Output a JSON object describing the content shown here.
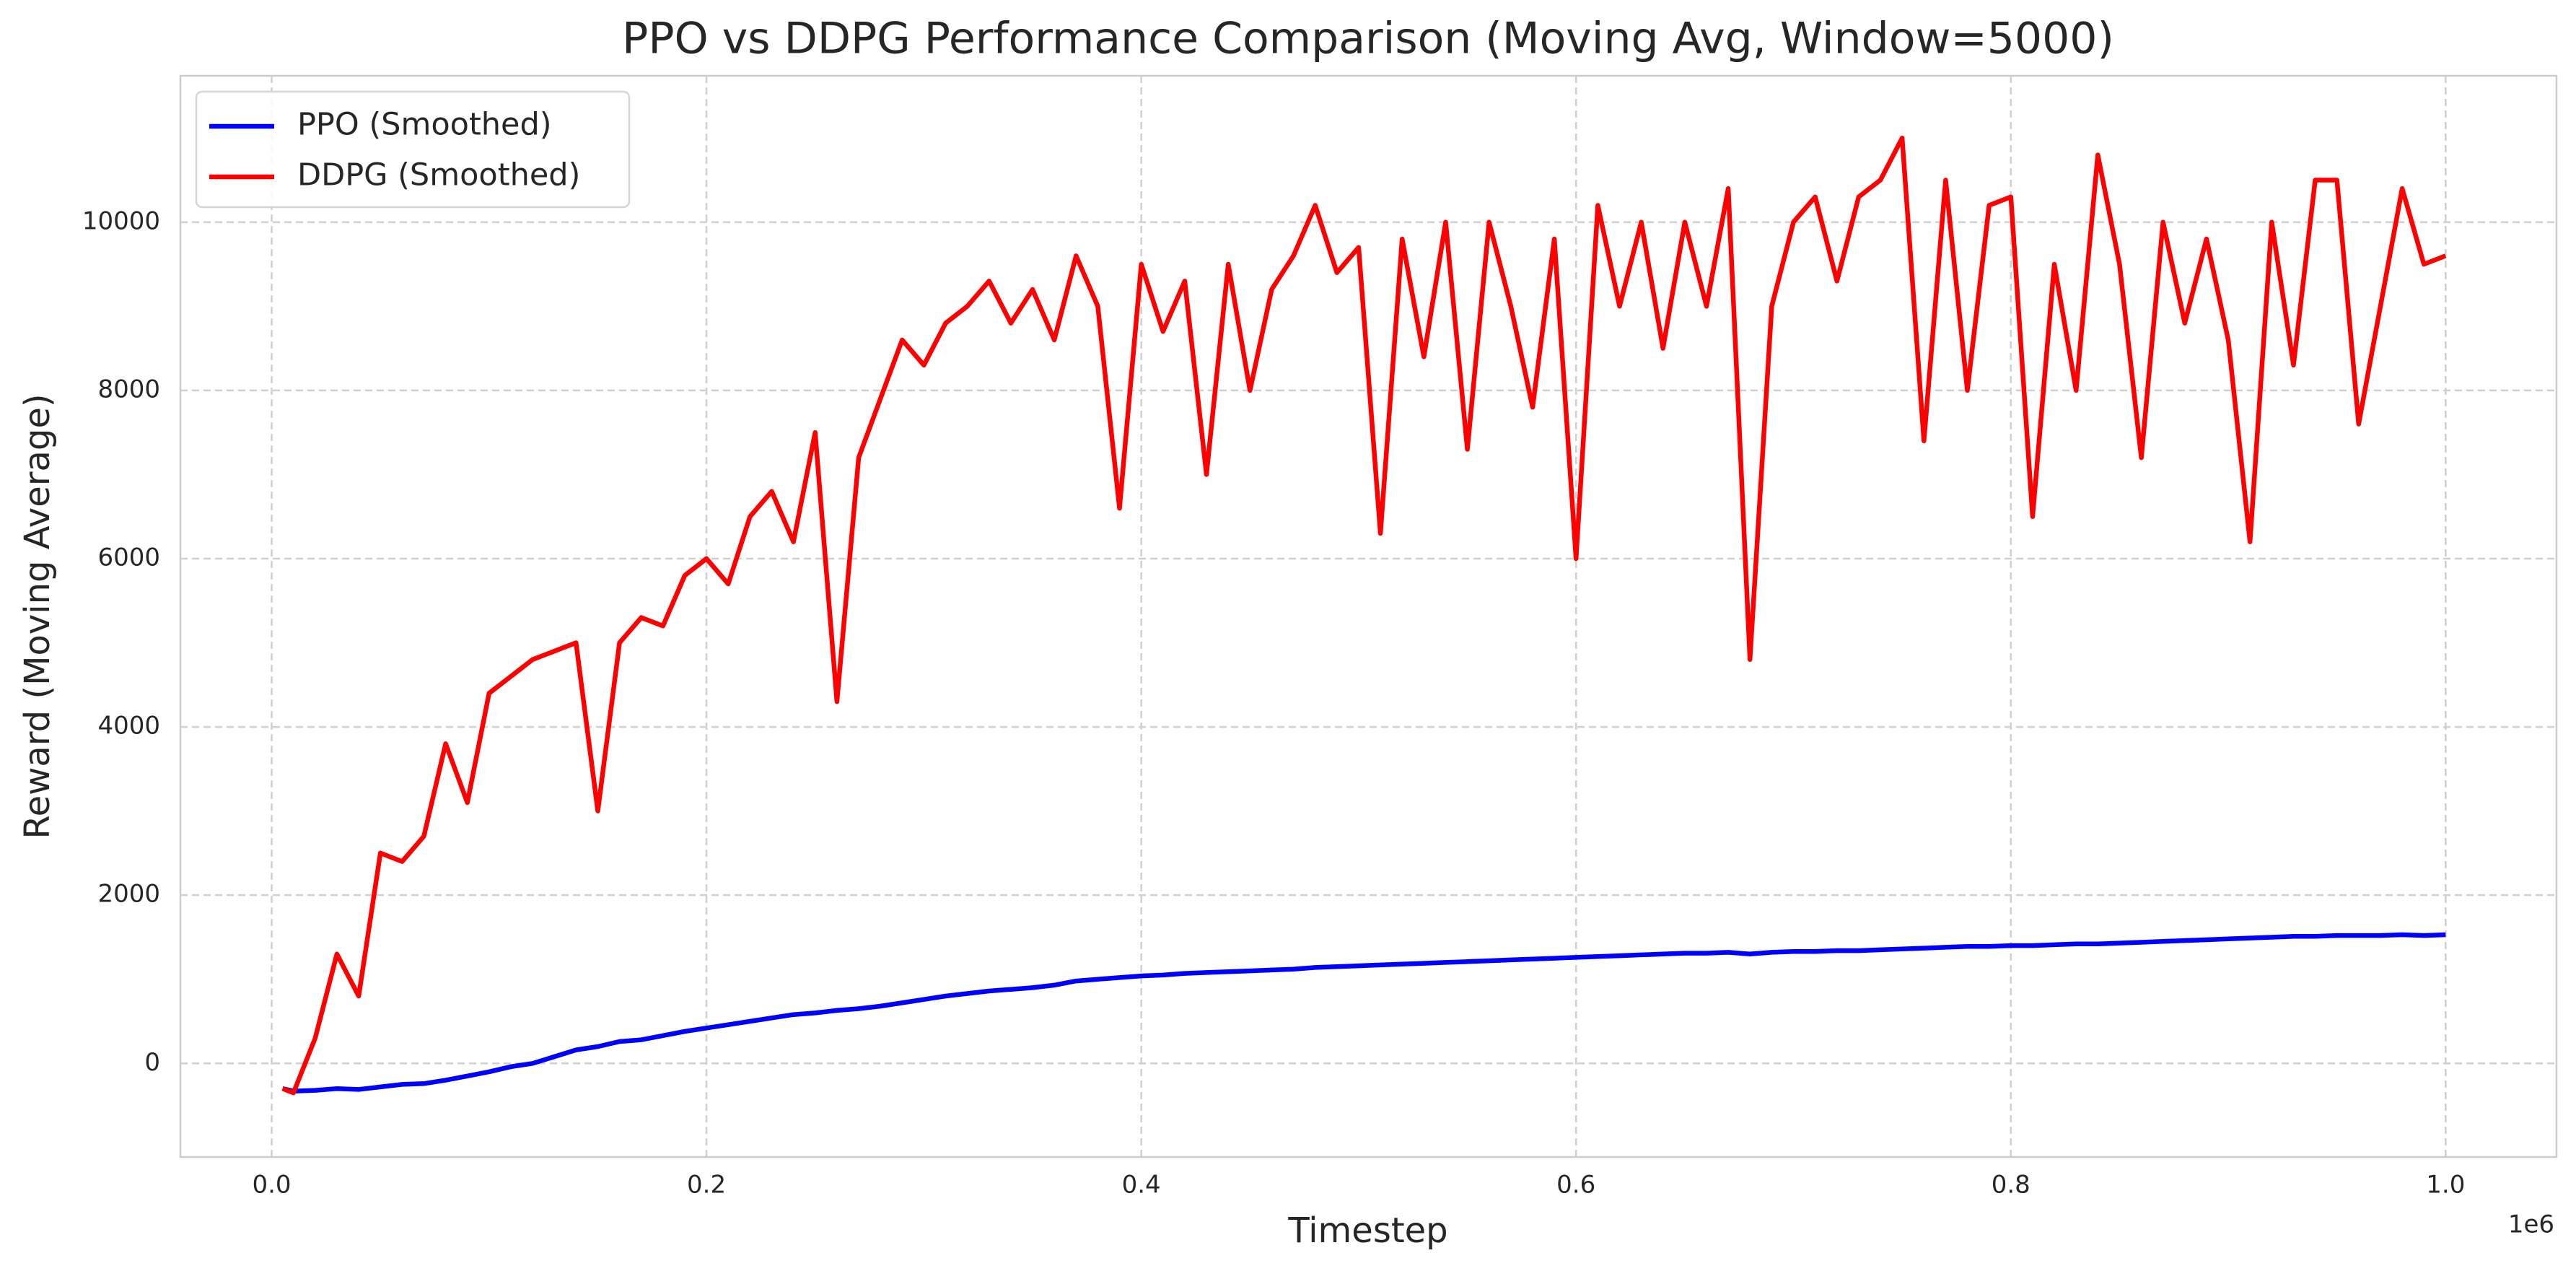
{
  "chart_data": {
    "type": "line",
    "title": "PPO vs DDPG Performance Comparison (Moving Avg, Window=5000)",
    "x_label": "Timestep",
    "y_label": "Reward (Moving Average)",
    "x_offset_label": "1e6",
    "x": [
      5000,
      10000,
      20000,
      30000,
      40000,
      50000,
      60000,
      70000,
      80000,
      90000,
      100000,
      110000,
      120000,
      130000,
      140000,
      150000,
      160000,
      170000,
      180000,
      190000,
      200000,
      210000,
      220000,
      230000,
      240000,
      250000,
      260000,
      270000,
      280000,
      290000,
      300000,
      310000,
      320000,
      330000,
      340000,
      350000,
      360000,
      370000,
      380000,
      390000,
      400000,
      410000,
      420000,
      430000,
      440000,
      450000,
      460000,
      470000,
      480000,
      490000,
      500000,
      510000,
      520000,
      530000,
      540000,
      550000,
      560000,
      570000,
      580000,
      590000,
      600000,
      610000,
      620000,
      630000,
      640000,
      650000,
      660000,
      670000,
      680000,
      690000,
      700000,
      710000,
      720000,
      730000,
      740000,
      750000,
      760000,
      770000,
      780000,
      790000,
      800000,
      810000,
      820000,
      830000,
      840000,
      850000,
      860000,
      870000,
      880000,
      890000,
      900000,
      910000,
      920000,
      930000,
      940000,
      950000,
      960000,
      970000,
      980000,
      990000,
      1000000
    ],
    "series": [
      {
        "name": "PPO (Smoothed)",
        "color": "#0000ff",
        "values": [
          -300,
          -330,
          -320,
          -300,
          -310,
          -280,
          -250,
          -240,
          -200,
          -150,
          -100,
          -40,
          0,
          80,
          160,
          200,
          260,
          280,
          330,
          380,
          420,
          460,
          500,
          540,
          580,
          600,
          630,
          650,
          680,
          720,
          760,
          800,
          830,
          860,
          880,
          900,
          930,
          980,
          1000,
          1020,
          1040,
          1050,
          1070,
          1080,
          1090,
          1100,
          1110,
          1120,
          1140,
          1150,
          1160,
          1170,
          1180,
          1190,
          1200,
          1210,
          1220,
          1230,
          1240,
          1250,
          1260,
          1270,
          1280,
          1290,
          1300,
          1310,
          1310,
          1320,
          1300,
          1320,
          1330,
          1330,
          1340,
          1340,
          1350,
          1360,
          1370,
          1380,
          1390,
          1390,
          1400,
          1400,
          1410,
          1420,
          1420,
          1430,
          1440,
          1450,
          1460,
          1470,
          1480,
          1490,
          1500,
          1510,
          1510,
          1520,
          1520,
          1520,
          1530,
          1520,
          1530
        ]
      },
      {
        "name": "DDPG (Smoothed)",
        "color": "#ff0000",
        "values": [
          -300,
          -350,
          300,
          1300,
          800,
          2500,
          2400,
          2700,
          3800,
          3100,
          4400,
          4600,
          4800,
          4900,
          5000,
          3000,
          5000,
          5300,
          5200,
          5800,
          6000,
          5700,
          6500,
          6800,
          6200,
          7500,
          4300,
          7200,
          7900,
          8600,
          8300,
          8800,
          9000,
          9300,
          8800,
          9200,
          8600,
          9600,
          9000,
          6600,
          9500,
          8700,
          9300,
          7000,
          9500,
          8000,
          9200,
          9600,
          10200,
          9400,
          9700,
          6300,
          9800,
          8400,
          10000,
          7300,
          10000,
          9000,
          7800,
          9800,
          6000,
          10200,
          9000,
          10000,
          8500,
          10000,
          9000,
          10400,
          4800,
          9000,
          10000,
          10300,
          9300,
          10300,
          10500,
          11000,
          7400,
          10500,
          8000,
          10200,
          10300,
          6500,
          9500,
          8000,
          10800,
          9500,
          7200,
          10000,
          8800,
          9800,
          8600,
          6200,
          10000,
          8300,
          10500,
          10500,
          7600,
          9000,
          10400,
          9500,
          9600
        ]
      }
    ],
    "xlim": [
      -42000,
      1051000
    ],
    "ylim": [
      -1113,
      11740
    ],
    "xticks": [
      {
        "value": 0,
        "label": "0.0"
      },
      {
        "value": 200000,
        "label": "0.2"
      },
      {
        "value": 400000,
        "label": "0.4"
      },
      {
        "value": 600000,
        "label": "0.6"
      },
      {
        "value": 800000,
        "label": "0.8"
      },
      {
        "value": 1000000,
        "label": "1.0"
      }
    ],
    "yticks": [
      0,
      2000,
      4000,
      6000,
      8000,
      10000
    ],
    "grid": true,
    "legend": "upper left"
  }
}
